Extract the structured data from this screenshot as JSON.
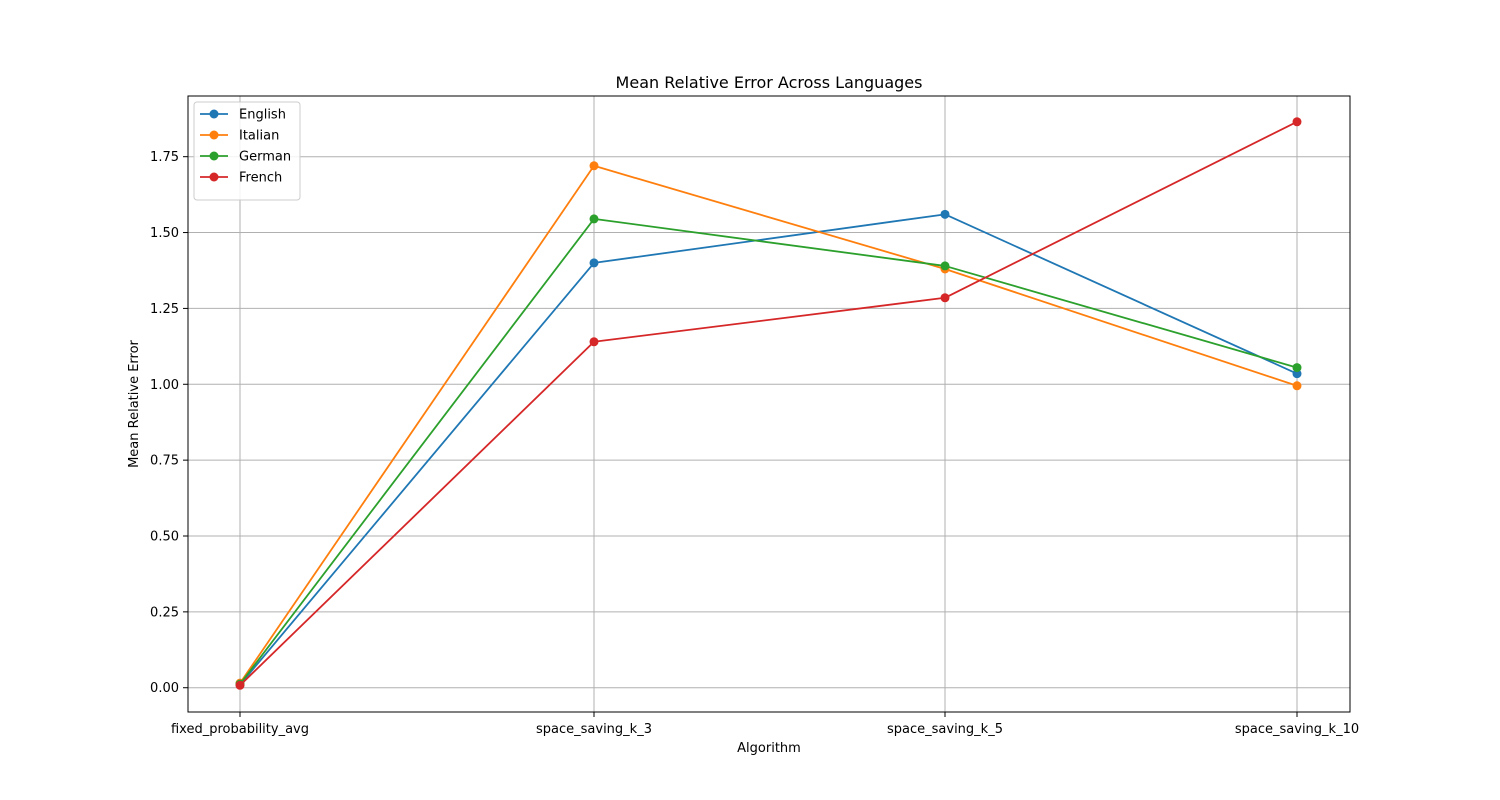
{
  "chart_data": {
    "type": "line",
    "title": "Mean Relative Error Across Languages",
    "xlabel": "Algorithm",
    "ylabel": "Mean Relative Error",
    "categories": [
      "fixed_probability_avg",
      "space_saving_k_3",
      "space_saving_k_5",
      "space_saving_k_10"
    ],
    "ylim": [
      -0.08,
      1.95
    ],
    "yticks": [
      0.0,
      0.25,
      0.5,
      0.75,
      1.0,
      1.25,
      1.5,
      1.75
    ],
    "ytick_labels": [
      "0.00",
      "0.25",
      "0.50",
      "0.75",
      "1.00",
      "1.25",
      "1.50",
      "1.75"
    ],
    "grid": true,
    "legend_position": "top-left",
    "series": [
      {
        "name": "English",
        "color": "#1f77b4",
        "values": [
          0.01,
          1.4,
          1.56,
          1.035
        ]
      },
      {
        "name": "Italian",
        "color": "#ff7f0e",
        "values": [
          0.015,
          1.72,
          1.38,
          0.995
        ]
      },
      {
        "name": "German",
        "color": "#2ca02c",
        "values": [
          0.012,
          1.545,
          1.39,
          1.055
        ]
      },
      {
        "name": "French",
        "color": "#d62728",
        "values": [
          0.008,
          1.14,
          1.285,
          1.865
        ]
      }
    ]
  }
}
